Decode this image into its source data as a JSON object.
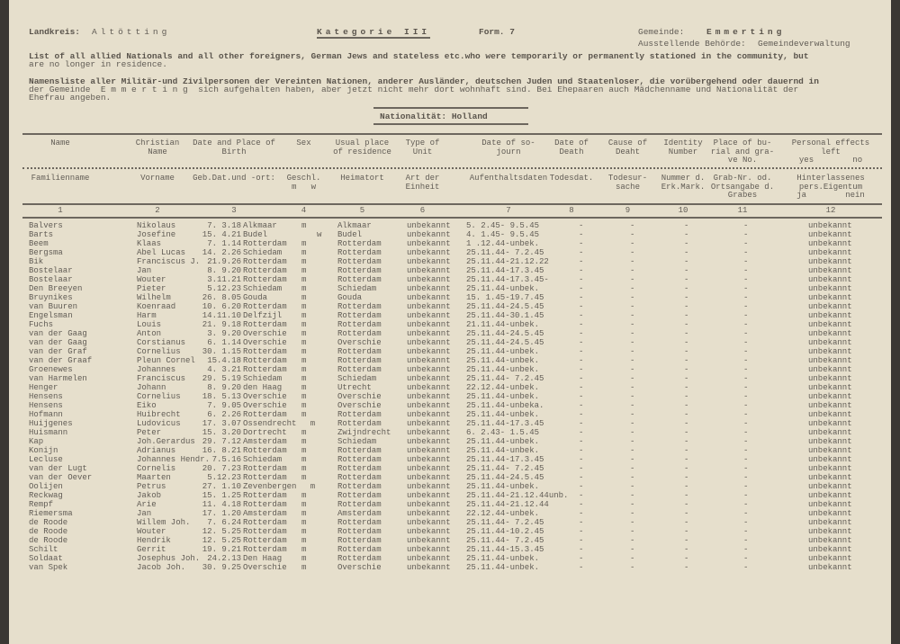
{
  "header": {
    "landkreis_label": "Landkreis:",
    "landkreis": "Altötting",
    "kategorie": "Kategorie III",
    "form": "Form. 7",
    "gemeinde_label": "Gemeinde:",
    "gemeinde": "Emmerting",
    "behoerde_label": "Ausstellende Behörde:",
    "behoerde": "Gemeindeverwaltung",
    "intro_en_1": "List of all allied Nationals and all other foreigners, German Jews and stateless etc.who were temporarily or permanently stationed in the community, but",
    "intro_en_2": "are no longer in residence.",
    "intro_de_1": "Namensliste aller Militär-und Zivilpersonen der Vereinten Nationen, anderer Ausländer, deutschen Juden und Staatenloser, die vorübergehend oder dauernd in",
    "intro_de_2": "der Gemeinde  E m m e r t i n g  sich aufgehalten haben, aber jetzt nicht mehr dort wohnhaft sind. Bei Ehepaaren auch Mädchenname und Nationalität der",
    "intro_de_3": "Ehefrau angeben.",
    "nationality": "Nationalität: Holland"
  },
  "columns": [
    {
      "en": "Name",
      "de": "Familienname",
      "num": "1"
    },
    {
      "en": "Christian\nName",
      "de": "Vorname",
      "num": "2"
    },
    {
      "en": "Date and Place of\nBirth",
      "de": "Geb.Dat.und -ort:",
      "num": "3"
    },
    {
      "en": "Sex",
      "de": "Geschl.\nm   w",
      "num": "4"
    },
    {
      "en": "Usual place\nof residence",
      "de": "Heimatort",
      "num": "5"
    },
    {
      "en": "Type of\nUnit",
      "de": "Art der\nEinheit",
      "num": "6"
    },
    {
      "en": "Date of so-\njourn",
      "de": "Aufenthaltsdaten",
      "num": "7"
    },
    {
      "en": "Date of\nDeath",
      "de": "Todesdat.",
      "num": "8"
    },
    {
      "en": "Cause of\nDeaht",
      "de": "Todesur-\nsache",
      "num": "9"
    },
    {
      "en": "Identity\nNumber",
      "de": "Nummer d.\nErk.Mark.",
      "num": "10"
    },
    {
      "en": "Place of bu-\nrial and gra-\nve No.",
      "de": "Grab-Nr. od.\nOrtsangabe d.\nGrabes",
      "num": "11"
    },
    {
      "en": "Personal effects\nleft\nyes        no",
      "de": "Hinterlassenes\npers.Eigentum\nja        nein",
      "num": "12"
    }
  ],
  "rows": [
    [
      "Balvers",
      "Nikolaus",
      "7. 3.18",
      "Alkmaar",
      "m",
      "Alkmaar",
      "unbekannt",
      "5. 2.45- 9.5.45",
      "-",
      "-",
      "-",
      "-",
      "unbekannt"
    ],
    [
      "Barts",
      "Josefine",
      "15. 4.21",
      "Budel",
      "w",
      "Budel",
      "unbekannt",
      "4. 1.45- 9.5.45",
      "-",
      "-",
      "-",
      "-",
      "unbekannt"
    ],
    [
      "Beem",
      "Klaas",
      "7. 1.14",
      "Rotterdam",
      "m",
      "Rotterdam",
      "unbekannt",
      "1 .12.44-unbek.",
      "-",
      "-",
      "-",
      "-",
      "unbekannt"
    ],
    [
      "Bergsma",
      "Abel Lucas",
      "14. 2.26",
      "Schiedam",
      "m",
      "Rotterdam",
      "unbekannt",
      "25.11.44- 7.2.45",
      "-",
      "-",
      "-",
      "-",
      "unbekannt"
    ],
    [
      "Bik",
      "Franciscus J.",
      "21.9.26",
      "Rotterdam",
      "m",
      "Rotterdam",
      "unbekannt",
      "25.11.44-21.12.22",
      "-",
      "-",
      "-",
      "-",
      "unbekannt"
    ],
    [
      "Bostelaar",
      "Jan",
      "8. 9.20",
      "Rotterdam",
      "m",
      "Rotterdam",
      "unbekannt",
      "25.11.44-17.3.45",
      "-",
      "-",
      "-",
      "-",
      "unbekannt"
    ],
    [
      "Bostelaar",
      "Wouter",
      "3.11.21",
      "Rotterdam",
      "m",
      "Rotterdam",
      "unbekannt",
      "25.11.44-17.3.45-",
      "-",
      "-",
      "-",
      "-",
      "unbekannt"
    ],
    [
      "Den Breeyen",
      "Pieter",
      "5.12.23",
      "Schiedam",
      "m",
      "Schiedam",
      "unbekannt",
      "25.11.44-unbek.",
      "-",
      "-",
      "-",
      "-",
      "unbekannt"
    ],
    [
      "Bruynikes",
      "Wilhelm",
      "26. 8.05",
      "Gouda",
      "m",
      "Gouda",
      "unbekannt",
      "15. 1.45-19.7.45",
      "-",
      "-",
      "-",
      "-",
      "unbekannt"
    ],
    [
      "van Buuren",
      "Koenraad",
      "10. 6.20",
      "Rotterdam",
      "m",
      "Rotterdam",
      "unbekannt",
      "25.11.44-24.5.45",
      "-",
      "-",
      "-",
      "-",
      "unbekannt"
    ],
    [
      "Engelsman",
      "Harm",
      "14.11.10",
      "Delfzijl",
      "m",
      "Rotterdam",
      "unbekannt",
      "25.11.44-30.1.45",
      "-",
      "-",
      "-",
      "-",
      "unbekannt"
    ],
    [
      "Fuchs",
      "Louis",
      "21. 9.18",
      "Rotterdam",
      "m",
      "Rotterdam",
      "unbekannt",
      "21.11.44-unbek.",
      "-",
      "-",
      "-",
      "-",
      "unbekannt"
    ],
    [
      "van der Gaag",
      "Anton",
      "3. 9.20",
      "Overschie",
      "m",
      "Rotterdam",
      "unbekannt",
      "25.11.44-24.5.45",
      "-",
      "-",
      "-",
      "-",
      "unbekannt"
    ],
    [
      "van der Gaag",
      "Corstianus",
      "6. 1.14",
      "Overschie",
      "m",
      "Overschie",
      "unbekannt",
      "25.11.44-24.5.45",
      "-",
      "-",
      "-",
      "-",
      "unbekannt"
    ],
    [
      "van der Graf",
      "Cornelius",
      "30. 1.15",
      "Rotterdam",
      "m",
      "Rotterdam",
      "unbekannt",
      "25.11.44-unbek.",
      "-",
      "-",
      "-",
      "-",
      "unbekannt"
    ],
    [
      "van der Graaf",
      "Pleun Cornel",
      "15.4.18",
      "Rotterdam",
      "m",
      "Rotterdam",
      "unbekannt",
      "25.11.44-unbek.",
      "-",
      "-",
      "-",
      "-",
      "unbekannt"
    ],
    [
      "Groenewes",
      "Johannes",
      "4. 3.21",
      "Rotterdam",
      "m",
      "Rotterdam",
      "unbekannt",
      "25.11.44-unbek.",
      "-",
      "-",
      "-",
      "-",
      "unbekannt"
    ],
    [
      "van Harmelen",
      "Franciscus",
      "29. 5.19",
      "Schiedam",
      "m",
      "Schiedam",
      "unbekannt",
      "25.11.44- 7.2.45",
      "-",
      "-",
      "-",
      "-",
      "unbekannt"
    ],
    [
      "Henger",
      "Johann",
      "8. 9.20",
      "den Haag",
      "m",
      "Utrecht",
      "unbekannt",
      "22.12.44-unbek.",
      "-",
      "-",
      "-",
      "-",
      "unbekannt"
    ],
    [
      "Hensens",
      "Cornelius",
      "18. 5.13",
      "Overschie",
      "m",
      "Overschie",
      "unbekannt",
      "25.11.44-unbek.",
      "-",
      "-",
      "-",
      "-",
      "unbekannt"
    ],
    [
      "Hensens",
      "Eiko",
      "7. 9.05",
      "Overschie",
      "m",
      "Overschie",
      "unbekannt",
      "25.11.44-unbeka.",
      "-",
      "-",
      "-",
      "-",
      "unbekannt"
    ],
    [
      "Hofmann",
      "Huibrecht",
      "6. 2.26",
      "Rotterdam",
      "m",
      "Rotterdam",
      "unbekannt",
      "25.11.44-unbek.",
      "-",
      "-",
      "-",
      "-",
      "unbekannt"
    ],
    [
      "Huijgenes",
      "Ludovicus",
      "17. 3.07",
      "Ossendrecht",
      "m",
      "Rotterdam",
      "unbekannt",
      "25.11.44-17.3.45",
      "-",
      "-",
      "-",
      "-",
      "unbekannt"
    ],
    [
      "Huismann",
      "Peter",
      "15. 3.20",
      "Dortrecht",
      "m",
      "Zwijndrecht",
      "unbekannt",
      "6. 2.43- 1.5.45",
      "-",
      "-",
      "-",
      "-",
      "unbekannt"
    ],
    [
      "Kap",
      "Joh.Gerardus",
      "29. 7.12",
      "Amsterdam",
      "m",
      "Schiedam",
      "unbekannt",
      "25.11.44-unbek.",
      "-",
      "-",
      "-",
      "-",
      "unbekannt"
    ],
    [
      "Konijn",
      "Adrianus",
      "16. 8.21",
      "Rotterdam",
      "m",
      "Rotterdam",
      "unbekannt",
      "25.11.44-unbek.",
      "-",
      "-",
      "-",
      "-",
      "unbekannt"
    ],
    [
      "Lecluse",
      "Johannes Hendr.",
      "7.5.16",
      "Schiedam",
      "m",
      "Rotterdam",
      "unbekannt",
      "25.11.44-17.3.45",
      "-",
      "-",
      "-",
      "-",
      "unbekannt"
    ],
    [
      "van der Lugt",
      "Cornelis",
      "20. 7.23",
      "Rotterdam",
      "m",
      "Rotterdam",
      "unbekannt",
      "25.11.44- 7.2.45",
      "-",
      "-",
      "-",
      "-",
      "unbekannt"
    ],
    [
      "van der Oever",
      "Maarten",
      "5.12.23",
      "Rotterdam",
      "m",
      "Rotterdam",
      "unbekannt",
      "25.11.44-24.5.45",
      "-",
      "-",
      "-",
      "-",
      "unbekannt"
    ],
    [
      "Oolijen",
      "Petrus",
      "27. 1.10",
      "Zevenbergen",
      "m",
      "Rotterdam",
      "unbekannt",
      "25.11.44-unbek.",
      "-",
      "-",
      "-",
      "-",
      "unbekannt"
    ],
    [
      "Reckwag",
      "Jakob",
      "15. 1.25",
      "Rotterdam",
      "m",
      "Rotterdam",
      "unbekannt",
      "25.11.44-21.12.44unb.",
      "-",
      "-",
      "-",
      "-",
      "unbekannt"
    ],
    [
      "Rempf",
      "Arie",
      "11. 4.18",
      "Rotterdam",
      "m",
      "Rotterdam",
      "unbekannt",
      "25.11.44-21.12.44",
      "-",
      "-",
      "-",
      "-",
      "unbekannt"
    ],
    [
      "Riemersma",
      "Jan",
      "17. 1.20",
      "Amsterdam",
      "m",
      "Amsterdam",
      "unbekannt",
      "22.12.44-unbek.",
      "-",
      "-",
      "-",
      "-",
      "unbekannt"
    ],
    [
      "de Roode",
      "Willem Joh.",
      "7. 6.24",
      "Rotterdam",
      "m",
      "Rotterdam",
      "unbekannt",
      "25.11.44- 7.2.45",
      "-",
      "-",
      "-",
      "-",
      "unbekannt"
    ],
    [
      "de Roode",
      "Wouter",
      "12. 5.25",
      "Rotterdam",
      "m",
      "Rotterdam",
      "unbekannt",
      "25.11.44-10.2.45",
      "-",
      "-",
      "-",
      "-",
      "unbekannt"
    ],
    [
      "de Roode",
      "Hendrik",
      "12. 5.25",
      "Rotterdam",
      "m",
      "Rotterdam",
      "unbekannt",
      "25.11.44- 7.2.45",
      "-",
      "-",
      "-",
      "-",
      "unbekannt"
    ],
    [
      "Schilt",
      "Gerrit",
      "19. 9.21",
      "Rotterdam",
      "m",
      "Rotterdam",
      "unbekannt",
      "25.11.44-15.3.45",
      "-",
      "-",
      "-",
      "-",
      "unbekannt"
    ],
    [
      "Soldaat",
      "Josephus Joh.",
      "24.2.13",
      "Den Haag",
      "m",
      "Rotterdam",
      "unbekannt",
      "25.11.44-unbek.",
      "-",
      "-",
      "-",
      "-",
      "unbekannt"
    ],
    [
      "van Spek",
      "Jacob Joh.",
      "30. 9.25",
      "Overschie",
      "m",
      "Overschie",
      "unbekannt",
      "25.11.44-unbek.",
      "-",
      "-",
      "-",
      "-",
      "unbekannt"
    ]
  ]
}
